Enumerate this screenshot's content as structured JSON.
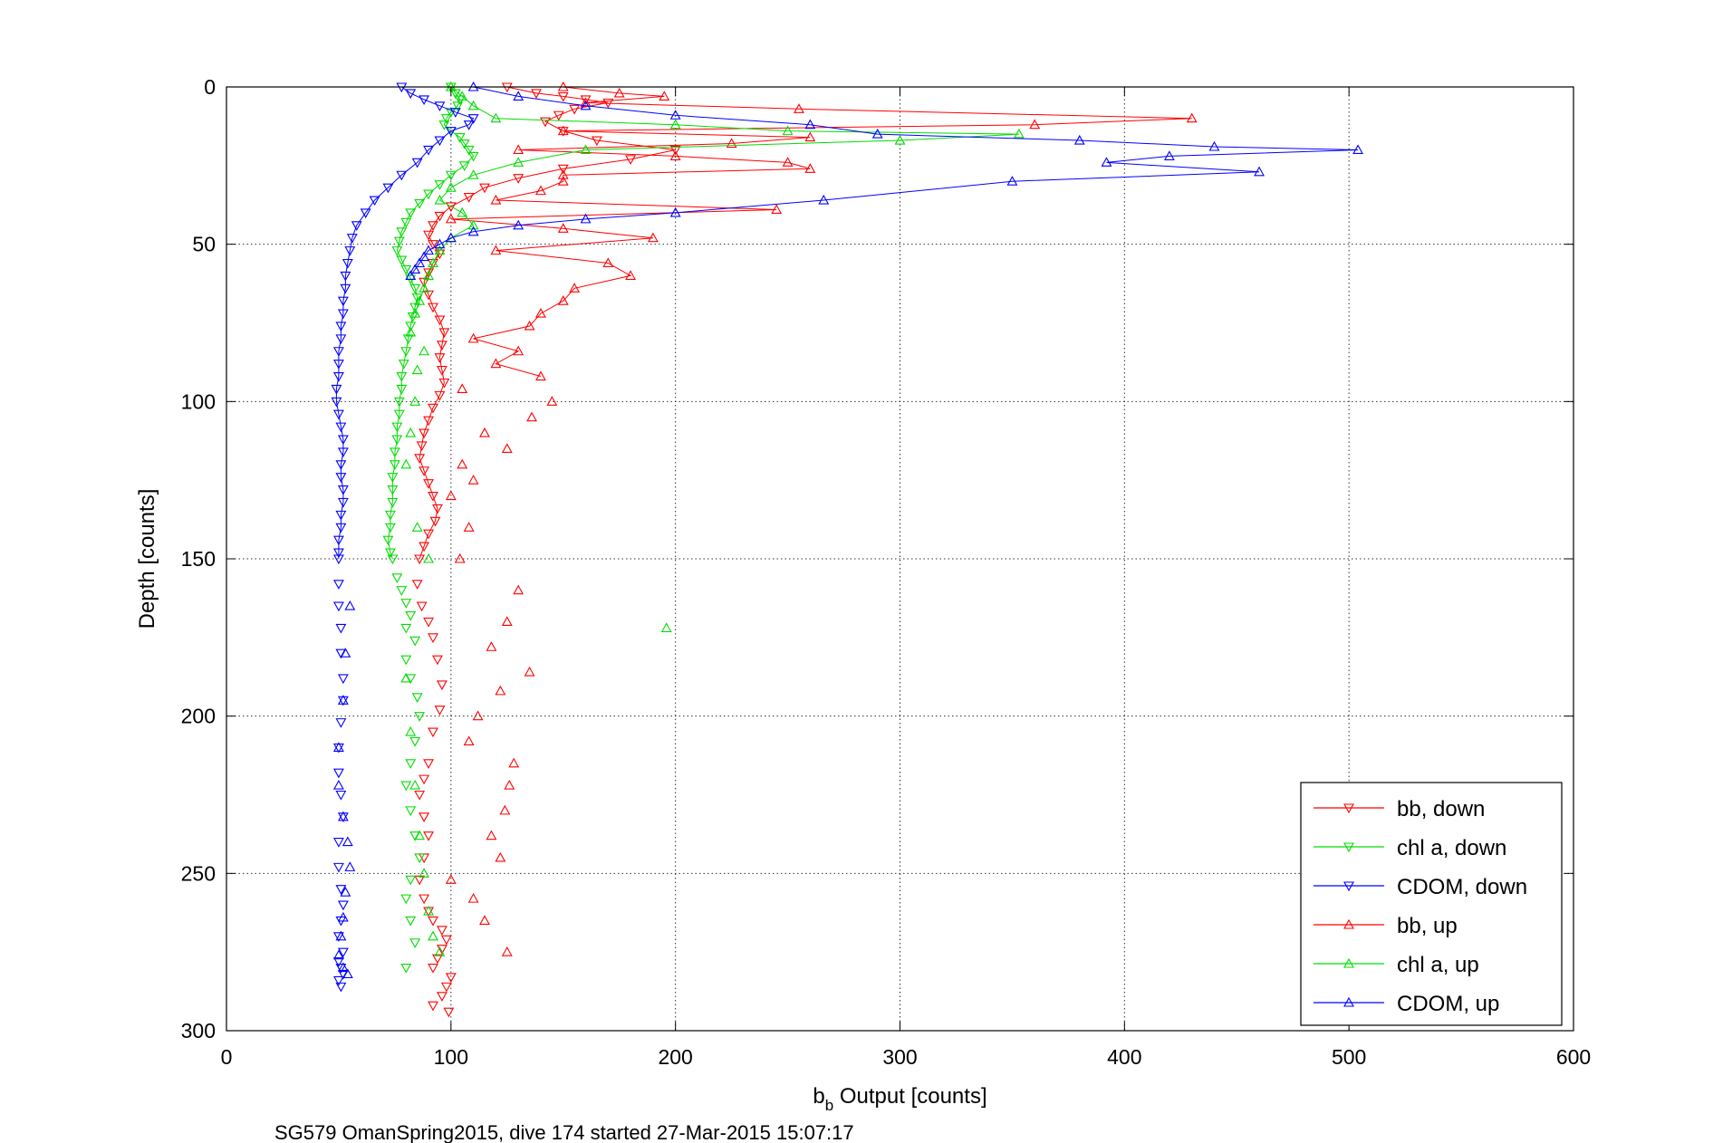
{
  "chart_data": {
    "type": "line",
    "title": "",
    "xlabel_main": "b",
    "xlabel_sub": "b",
    "xlabel_rest": " Output [counts]",
    "ylabel": "Depth [counts]",
    "footer": "SG579 OmanSpring2015, dive 174 started 27-Mar-2015 15:07:17",
    "xlim": [
      0,
      600
    ],
    "ylim": [
      0,
      300
    ],
    "y_reversed": true,
    "grid": true,
    "x_ticks": [
      "0",
      "100",
      "200",
      "300",
      "400",
      "500",
      "600"
    ],
    "y_ticks": [
      "0",
      "50",
      "100",
      "150",
      "200",
      "250",
      "300"
    ],
    "legend_position": "bottom-right",
    "series": [
      {
        "name": "bb, down",
        "color": "#ff0000",
        "marker": "triangle-down",
        "x": [
          125,
          138,
          150,
          160,
          170,
          155,
          148,
          142,
          150,
          165,
          200,
          180,
          150,
          130,
          115,
          108,
          100,
          95,
          92,
          90,
          92,
          95,
          92,
          90,
          88,
          90,
          92,
          95,
          97,
          96,
          95,
          96,
          97,
          95,
          92,
          90,
          88,
          87,
          86,
          88,
          90,
          92,
          94,
          93,
          90,
          88,
          86,
          85,
          87,
          90,
          92,
          94,
          96,
          95,
          92,
          90,
          88,
          86,
          88,
          90,
          88,
          86,
          88,
          90,
          92,
          96,
          98,
          96,
          94,
          92,
          100,
          98,
          96,
          92,
          99
        ],
        "y": [
          0,
          2,
          3,
          4,
          5,
          7,
          9,
          11,
          14,
          17,
          20,
          23,
          26,
          29,
          32,
          35,
          38,
          41,
          44,
          47,
          50,
          53,
          56,
          59,
          62,
          66,
          70,
          74,
          78,
          82,
          86,
          90,
          94,
          98,
          102,
          106,
          110,
          114,
          118,
          122,
          126,
          130,
          134,
          138,
          142,
          146,
          150,
          158,
          165,
          170,
          175,
          182,
          190,
          198,
          205,
          215,
          220,
          225,
          232,
          238,
          245,
          252,
          258,
          262,
          265,
          268,
          271,
          274,
          277,
          280,
          283,
          286,
          289,
          292,
          294
        ],
        "line_until": 150
      },
      {
        "name": "chl a, down",
        "color": "#00dd00",
        "marker": "triangle-down",
        "x": [
          100,
          102,
          104,
          103,
          100,
          98,
          97,
          100,
          104,
          106,
          108,
          110,
          106,
          100,
          95,
          90,
          86,
          82,
          80,
          78,
          77,
          76,
          78,
          80,
          82,
          84,
          85,
          84,
          83,
          82,
          81,
          80,
          79,
          78,
          78,
          77,
          77,
          76,
          76,
          75,
          75,
          74,
          74,
          74,
          73,
          73,
          72,
          73,
          74,
          76,
          78,
          80,
          82,
          80,
          84,
          80,
          82,
          85,
          86,
          84,
          82,
          80,
          82,
          84,
          86,
          82,
          80,
          82,
          84,
          80
        ],
        "y": [
          0,
          2,
          4,
          6,
          8,
          10,
          12,
          14,
          16,
          18,
          20,
          22,
          25,
          28,
          31,
          34,
          37,
          40,
          43,
          46,
          49,
          52,
          55,
          58,
          61,
          64,
          67,
          70,
          73,
          76,
          80,
          84,
          88,
          92,
          96,
          100,
          104,
          108,
          112,
          116,
          120,
          124,
          128,
          132,
          136,
          140,
          144,
          148,
          150,
          156,
          160,
          164,
          168,
          172,
          176,
          182,
          188,
          194,
          200,
          208,
          215,
          222,
          230,
          238,
          245,
          252,
          258,
          265,
          272,
          280
        ],
        "line_until": 150
      },
      {
        "name": "CDOM, down",
        "color": "#0000ff",
        "marker": "triangle-down",
        "x": [
          78,
          82,
          88,
          95,
          102,
          110,
          108,
          100,
          95,
          90,
          85,
          78,
          72,
          66,
          62,
          58,
          56,
          55,
          54,
          53,
          53,
          52,
          52,
          51,
          51,
          50,
          50,
          50,
          49,
          49,
          50,
          51,
          52,
          52,
          51,
          51,
          52,
          52,
          51,
          51,
          50,
          50,
          50,
          50,
          50,
          51,
          51,
          52,
          52,
          51,
          50,
          50,
          51,
          52,
          50,
          50,
          51,
          52,
          51,
          50,
          52,
          50,
          51,
          52,
          50,
          51
        ],
        "y": [
          0,
          2,
          4,
          6,
          8,
          10,
          12,
          14,
          17,
          20,
          24,
          28,
          32,
          36,
          40,
          44,
          48,
          52,
          56,
          60,
          64,
          68,
          72,
          76,
          80,
          84,
          88,
          92,
          96,
          100,
          104,
          108,
          112,
          116,
          120,
          124,
          128,
          132,
          136,
          140,
          144,
          148,
          150,
          158,
          165,
          172,
          180,
          188,
          195,
          202,
          210,
          218,
          225,
          232,
          240,
          248,
          255,
          260,
          265,
          270,
          275,
          278,
          280,
          282,
          284,
          286
        ],
        "line_until": 150
      },
      {
        "name": "bb, up",
        "color": "#ff0000",
        "marker": "triangle-up",
        "x": [
          150,
          175,
          195,
          160,
          255,
          430,
          360,
          150,
          260,
          225,
          130,
          200,
          250,
          260,
          150,
          150,
          140,
          120,
          245,
          100,
          150,
          190,
          120,
          170,
          180,
          155,
          150,
          140,
          135,
          110,
          130,
          120,
          140,
          105,
          145,
          136,
          115,
          125,
          105,
          110,
          100,
          108,
          104,
          130,
          125,
          118,
          135,
          122,
          112,
          108,
          128,
          126,
          124,
          118,
          122,
          100,
          110,
          115,
          125
        ],
        "y": [
          0,
          2,
          3,
          5,
          7,
          10,
          12,
          14,
          16,
          18,
          20,
          22,
          24,
          26,
          28,
          30,
          33,
          36,
          39,
          42,
          45,
          48,
          52,
          56,
          60,
          64,
          68,
          72,
          76,
          80,
          84,
          88,
          92,
          96,
          100,
          105,
          110,
          115,
          120,
          125,
          130,
          140,
          150,
          160,
          170,
          178,
          186,
          192,
          200,
          208,
          215,
          222,
          230,
          238,
          245,
          252,
          258,
          265,
          275
        ],
        "line_until": 95
      },
      {
        "name": "chl a, up",
        "color": "#00dd00",
        "marker": "triangle-up",
        "x": [
          100,
          105,
          110,
          120,
          200,
          250,
          353,
          300,
          160,
          130,
          110,
          100,
          95,
          105,
          110,
          100,
          95,
          92,
          90,
          88,
          86,
          84,
          82,
          88,
          85,
          84,
          82,
          80,
          85,
          90,
          196,
          80,
          82,
          84,
          86,
          88,
          90,
          92,
          95
        ],
        "y": [
          0,
          3,
          6,
          10,
          12,
          14,
          15,
          17,
          20,
          24,
          28,
          32,
          36,
          40,
          44,
          48,
          52,
          56,
          60,
          64,
          68,
          72,
          78,
          84,
          90,
          100,
          110,
          120,
          140,
          150,
          172,
          188,
          205,
          222,
          238,
          250,
          262,
          270,
          275
        ],
        "line_until": 75
      },
      {
        "name": "CDOM, up",
        "color": "#0000ff",
        "marker": "triangle-up",
        "x": [
          110,
          130,
          160,
          200,
          260,
          290,
          380,
          440,
          504,
          420,
          392,
          460,
          350,
          266,
          200,
          160,
          130,
          110,
          100,
          95,
          90,
          88,
          86,
          84,
          82,
          55,
          53,
          52,
          50,
          50,
          52,
          54,
          55,
          53,
          52,
          51,
          50,
          52,
          54
        ],
        "y": [
          0,
          3,
          6,
          9,
          12,
          15,
          17,
          19,
          20,
          22,
          24,
          27,
          30,
          36,
          40,
          42,
          44,
          46,
          48,
          50,
          52,
          54,
          56,
          58,
          60,
          165,
          180,
          195,
          210,
          222,
          232,
          240,
          248,
          256,
          264,
          270,
          276,
          280,
          282
        ],
        "line_until": 60
      }
    ]
  }
}
